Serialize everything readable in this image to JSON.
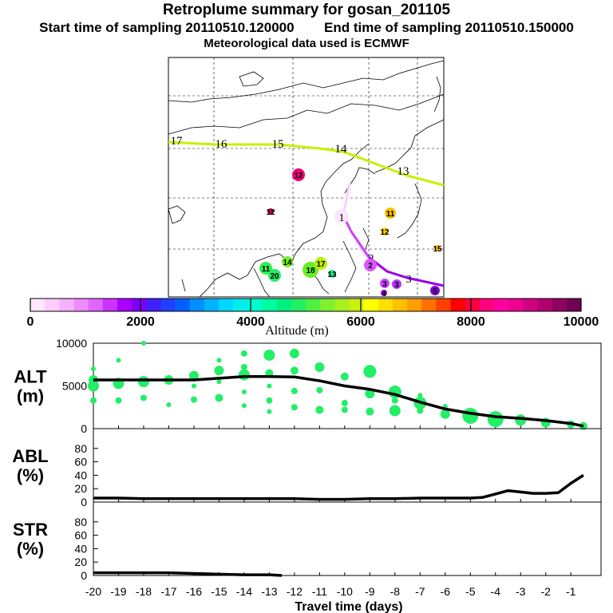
{
  "header": {
    "title": "Retroplume summary for gosan_201105",
    "start_label": "Start time of sampling 20110510.120000",
    "end_label": "End time of sampling 20110510.150000",
    "met_label": "Meteorological data used is ECMWF"
  },
  "colorbar": {
    "label": "Altitude (m)",
    "ticks": [
      "0",
      "2000",
      "4000",
      "6000",
      "8000",
      "10000"
    ],
    "min": 0,
    "max": 10000,
    "colors": [
      "#ffe6ff",
      "#ffccff",
      "#f5b0ff",
      "#ee8cff",
      "#e066ff",
      "#cc33ff",
      "#aa00ff",
      "#7f00ff",
      "#4020ff",
      "#2040ff",
      "#0060ff",
      "#0090ff",
      "#00b4ff",
      "#00d8ff",
      "#00eeee",
      "#00ffcc",
      "#00ffa0",
      "#00f080",
      "#20f060",
      "#50f040",
      "#80f030",
      "#a8f020",
      "#ccf010",
      "#ffff00",
      "#ffe000",
      "#ffc000",
      "#ffa000",
      "#ff7000",
      "#ff4000",
      "#ff0000",
      "#ff0040",
      "#ff0080",
      "#ff00a0",
      "#ee0090",
      "#d00080",
      "#b00070",
      "#900060",
      "#700050"
    ]
  },
  "map": {
    "trajectory_upper": {
      "color": "#c8f000",
      "day_labels": [
        "17",
        "16",
        "15",
        "14",
        "13"
      ]
    },
    "trajectory_lower": {
      "colors": [
        "#ffccff",
        "#cc44ff",
        "#9900ee"
      ],
      "day_labels": [
        "1",
        "2",
        "3"
      ]
    },
    "points": [
      {
        "label": "12",
        "color": "#ee0077"
      },
      {
        "label": "12",
        "color": "#cc0044"
      },
      {
        "label": "11",
        "color": "#ffc000"
      },
      {
        "label": "12",
        "color": "#ffd000"
      },
      {
        "label": "15",
        "color": "#ffc000"
      },
      {
        "label": "11",
        "color": "#33ee55"
      },
      {
        "label": "20",
        "color": "#22ee66"
      },
      {
        "label": "14",
        "color": "#77ee22"
      },
      {
        "label": "18",
        "color": "#66ee22"
      },
      {
        "label": "17",
        "color": "#bbee00"
      },
      {
        "label": "13",
        "color": "#22ee88"
      },
      {
        "label": "2",
        "color": "#dd55ff"
      },
      {
        "label": "3",
        "color": "#cc44ff"
      },
      {
        "label": "3",
        "color": "#bb33ff"
      },
      {
        "label": "4",
        "color": "#9900ee"
      },
      {
        "label": "5",
        "color": "#8800dd"
      }
    ]
  },
  "chart_data": [
    {
      "type": "line",
      "name": "ALT",
      "ylabel": "ALT (m)",
      "ylabel_lines": [
        "ALT",
        "(m)"
      ],
      "ylim": [
        0,
        10000
      ],
      "yticks": [
        "10000",
        "5000",
        "0"
      ],
      "x": [
        -20,
        -19,
        -18,
        -17,
        -16,
        -15,
        -14,
        -13,
        -12,
        -11,
        -10,
        -9,
        -8,
        -7,
        -6,
        -5,
        -4,
        -3,
        -2,
        -1,
        -0.5
      ],
      "y": [
        5700,
        5700,
        5700,
        5700,
        5700,
        5900,
        6100,
        6100,
        6050,
        5600,
        5000,
        4600,
        4000,
        3100,
        2300,
        1800,
        1400,
        1200,
        950,
        600,
        300
      ],
      "scatter": [
        {
          "x": -20,
          "y": 5000,
          "s": 7
        },
        {
          "x": -20,
          "y": 5700,
          "s": 6
        },
        {
          "x": -20,
          "y": 7000,
          "s": 3
        },
        {
          "x": -20,
          "y": 3300,
          "s": 4
        },
        {
          "x": -19,
          "y": 5300,
          "s": 7
        },
        {
          "x": -19,
          "y": 3300,
          "s": 4
        },
        {
          "x": -19,
          "y": 8000,
          "s": 3
        },
        {
          "x": -18,
          "y": 5500,
          "s": 7
        },
        {
          "x": -18,
          "y": 3600,
          "s": 4
        },
        {
          "x": -18,
          "y": 10000,
          "s": 3
        },
        {
          "x": -17,
          "y": 5700,
          "s": 6
        },
        {
          "x": -17,
          "y": 2800,
          "s": 3
        },
        {
          "x": -16,
          "y": 6200,
          "s": 6
        },
        {
          "x": -16,
          "y": 3400,
          "s": 4
        },
        {
          "x": -16,
          "y": 5000,
          "s": 3
        },
        {
          "x": -15,
          "y": 6800,
          "s": 6
        },
        {
          "x": -15,
          "y": 3600,
          "s": 5
        },
        {
          "x": -15,
          "y": 8000,
          "s": 3
        },
        {
          "x": -15,
          "y": 5500,
          "s": 3
        },
        {
          "x": -14,
          "y": 6300,
          "s": 7
        },
        {
          "x": -14,
          "y": 8800,
          "s": 4
        },
        {
          "x": -14,
          "y": 7200,
          "s": 4
        },
        {
          "x": -14,
          "y": 4300,
          "s": 3
        },
        {
          "x": -14,
          "y": 2700,
          "s": 3
        },
        {
          "x": -13,
          "y": 8600,
          "s": 7
        },
        {
          "x": -13,
          "y": 6500,
          "s": 5
        },
        {
          "x": -13,
          "y": 5000,
          "s": 3
        },
        {
          "x": -13,
          "y": 3300,
          "s": 4
        },
        {
          "x": -13,
          "y": 2000,
          "s": 3
        },
        {
          "x": -12,
          "y": 8800,
          "s": 6
        },
        {
          "x": -12,
          "y": 6800,
          "s": 5
        },
        {
          "x": -12,
          "y": 4400,
          "s": 4
        },
        {
          "x": -12,
          "y": 2500,
          "s": 4
        },
        {
          "x": -11,
          "y": 7200,
          "s": 6
        },
        {
          "x": -11,
          "y": 4500,
          "s": 4
        },
        {
          "x": -11,
          "y": 2200,
          "s": 5
        },
        {
          "x": -10,
          "y": 6100,
          "s": 5
        },
        {
          "x": -10,
          "y": 3000,
          "s": 4
        },
        {
          "x": -10,
          "y": 2200,
          "s": 4
        },
        {
          "x": -9,
          "y": 6700,
          "s": 8
        },
        {
          "x": -9,
          "y": 4100,
          "s": 6
        },
        {
          "x": -9,
          "y": 2000,
          "s": 5
        },
        {
          "x": -8,
          "y": 4300,
          "s": 8
        },
        {
          "x": -8,
          "y": 2100,
          "s": 7
        },
        {
          "x": -8,
          "y": 3300,
          "s": 4
        },
        {
          "x": -7,
          "y": 3000,
          "s": 8
        },
        {
          "x": -7,
          "y": 2100,
          "s": 4
        },
        {
          "x": -7,
          "y": 3900,
          "s": 3
        },
        {
          "x": -6,
          "y": 1700,
          "s": 6
        },
        {
          "x": -6,
          "y": 2600,
          "s": 3
        },
        {
          "x": -5,
          "y": 1500,
          "s": 10
        },
        {
          "x": -5,
          "y": 1800,
          "s": 5
        },
        {
          "x": -4,
          "y": 1100,
          "s": 10
        },
        {
          "x": -4,
          "y": 1500,
          "s": 6
        },
        {
          "x": -3,
          "y": 1000,
          "s": 7
        },
        {
          "x": -3,
          "y": 1300,
          "s": 4
        },
        {
          "x": -2,
          "y": 700,
          "s": 6
        },
        {
          "x": -2,
          "y": 1000,
          "s": 3
        },
        {
          "x": -1,
          "y": 500,
          "s": 5
        },
        {
          "x": -0.5,
          "y": 300,
          "s": 5
        }
      ]
    },
    {
      "type": "line",
      "name": "ABL",
      "ylabel": "ABL (%)",
      "ylabel_lines": [
        "ABL",
        "(%)"
      ],
      "ylim": [
        0,
        100
      ],
      "yticks": [
        "80",
        "60",
        "40",
        "20",
        "0"
      ],
      "x": [
        -20,
        -19,
        -18,
        -17,
        -16,
        -15,
        -14,
        -13,
        -12,
        -11,
        -10,
        -9,
        -8,
        -7,
        -6,
        -5,
        -4.5,
        -4,
        -3.5,
        -3,
        -2.5,
        -2,
        -1.5,
        -1,
        -0.5
      ],
      "y": [
        6,
        6,
        5,
        5,
        5,
        5,
        5,
        5,
        5,
        4,
        4,
        5,
        5,
        6,
        6,
        6,
        7,
        12,
        17,
        15,
        13,
        13,
        14,
        28,
        40
      ]
    },
    {
      "type": "line",
      "name": "STR",
      "ylabel": "STR (%)",
      "ylabel_lines": [
        "STR",
        "(%)"
      ],
      "ylim": [
        0,
        100
      ],
      "yticks": [
        "80",
        "60",
        "40",
        "20",
        "0"
      ],
      "x": [
        -20,
        -19,
        -18,
        -17,
        -16,
        -15,
        -14,
        -13,
        -12.5
      ],
      "y": [
        4,
        4,
        4,
        4,
        3,
        2,
        1,
        1,
        0
      ]
    }
  ],
  "xaxis": {
    "label": "Travel time (days)",
    "ticks": [
      "-20",
      "-19",
      "-18",
      "-17",
      "-16",
      "-15",
      "-14",
      "-13",
      "-12",
      "-11",
      "-10",
      "-9",
      "-8",
      "-7",
      "-6",
      "-5",
      "-4",
      "-3",
      "-2",
      "-1"
    ]
  }
}
